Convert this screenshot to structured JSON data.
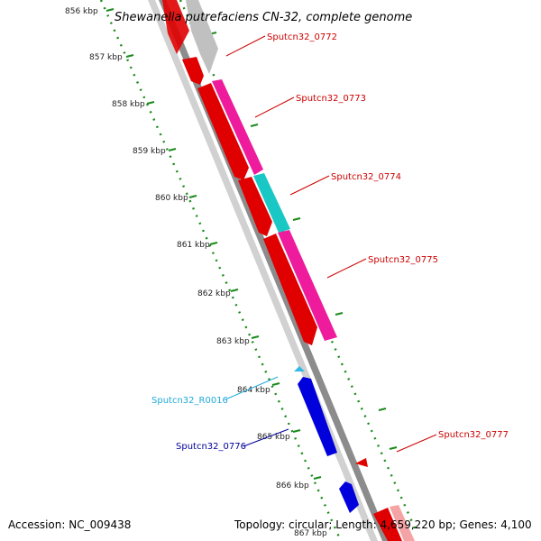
{
  "title": "Shewanella putrefaciens CN-32, complete genome",
  "footer": {
    "accession": "Accession: NC_009438",
    "summary": "Topology: circular; Length: 4,659,220 bp; Genes: 4,100"
  },
  "ticks": [
    "856 kbp",
    "857 kbp",
    "858 kbp",
    "859 kbp",
    "860 kbp",
    "861 kbp",
    "862 kbp",
    "863 kbp",
    "864 kbp",
    "865 kbp",
    "866 kbp",
    "867 kbp"
  ],
  "genes": [
    {
      "label": "Sputcn32_0772",
      "strand": "+",
      "color": "#d81010",
      "cog_color": "#c0c0c0"
    },
    {
      "label": "Sputcn32_0773",
      "strand": "+",
      "color": "#e00000",
      "cog_color": "#ee1c9c"
    },
    {
      "label": "Sputcn32_0774",
      "strand": "+",
      "color": "#e00000",
      "cog_color": "#19c7c4"
    },
    {
      "label": "Sputcn32_0775",
      "strand": "+",
      "color": "#e00000",
      "cog_color": "#ee1c9c"
    },
    {
      "label": "Sputcn32_R0016",
      "strand": "-",
      "color": "#31b9e8"
    },
    {
      "label": "Sputcn32_0776",
      "strand": "-",
      "color": "#0000dd"
    },
    {
      "label": "Sputcn32_0777",
      "strand": "+",
      "color": "#e00000"
    }
  ],
  "colors": {
    "backbone": "#8c8c8c",
    "gc_dots": "#1a8a1a",
    "label_red": "#cc0000",
    "label_cyan": "#21a9d8",
    "label_blue": "#000099"
  }
}
